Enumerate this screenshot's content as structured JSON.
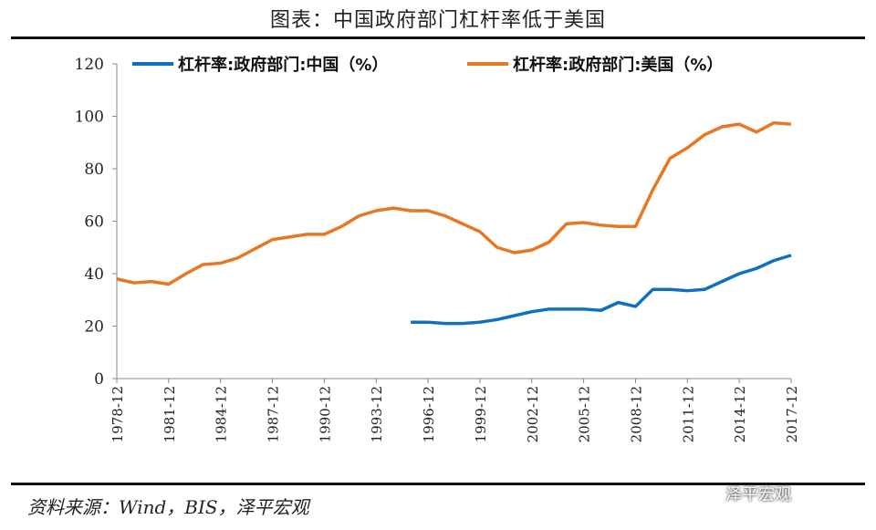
{
  "title": "图表：中国政府部门杠杆率低于美国",
  "source": "资料来源：Wind，BIS，泽平宏观",
  "watermark": "泽平宏观",
  "chart_data": {
    "type": "line",
    "title": "图表：中国政府部门杠杆率低于美国",
    "xlabel": "",
    "ylabel": "",
    "ylim": [
      0,
      120
    ],
    "yticks": [
      0,
      20,
      40,
      60,
      80,
      100,
      120
    ],
    "xticks": [
      "1978-12",
      "1981-12",
      "1984-12",
      "1987-12",
      "1990-12",
      "1993-12",
      "1996-12",
      "1999-12",
      "2002-12",
      "2005-12",
      "2008-12",
      "2011-12",
      "2014-12",
      "2017-12"
    ],
    "xlim": [
      1978,
      2017
    ],
    "legend": "top",
    "grid": false,
    "series": [
      {
        "name": "杠杆率:政府部门:中国（%）",
        "color": "#1070C0",
        "x": [
          1995,
          1996,
          1997,
          1998,
          1999,
          2000,
          2001,
          2002,
          2003,
          2004,
          2005,
          2006,
          2007,
          2008,
          2009,
          2010,
          2011,
          2012,
          2013,
          2014,
          2015,
          2016,
          2017
        ],
        "values": [
          21.5,
          21.5,
          21,
          21,
          21.5,
          22.5,
          24,
          25.5,
          26.5,
          26.5,
          26.5,
          26,
          29,
          27.5,
          34,
          34,
          33.5,
          34,
          37,
          40,
          42,
          45,
          47
        ]
      },
      {
        "name": "杠杆率:政府部门:美国（%）",
        "color": "#E87722",
        "x": [
          1978,
          1979,
          1980,
          1981,
          1982,
          1983,
          1984,
          1985,
          1986,
          1987,
          1988,
          1989,
          1990,
          1991,
          1992,
          1993,
          1994,
          1995,
          1996,
          1997,
          1998,
          1999,
          2000,
          2001,
          2002,
          2003,
          2004,
          2005,
          2006,
          2007,
          2008,
          2009,
          2010,
          2011,
          2012,
          2013,
          2014,
          2015,
          2016,
          2017
        ],
        "values": [
          38,
          36.5,
          37,
          36,
          40,
          43.5,
          44,
          46,
          49.5,
          53,
          54,
          55,
          55,
          58,
          62,
          64,
          65,
          64,
          64,
          62,
          59,
          56,
          50,
          48,
          49,
          52,
          59,
          59.5,
          58.5,
          58,
          58,
          72,
          84,
          88,
          93,
          96,
          97,
          94,
          97.5,
          97
        ]
      }
    ]
  }
}
